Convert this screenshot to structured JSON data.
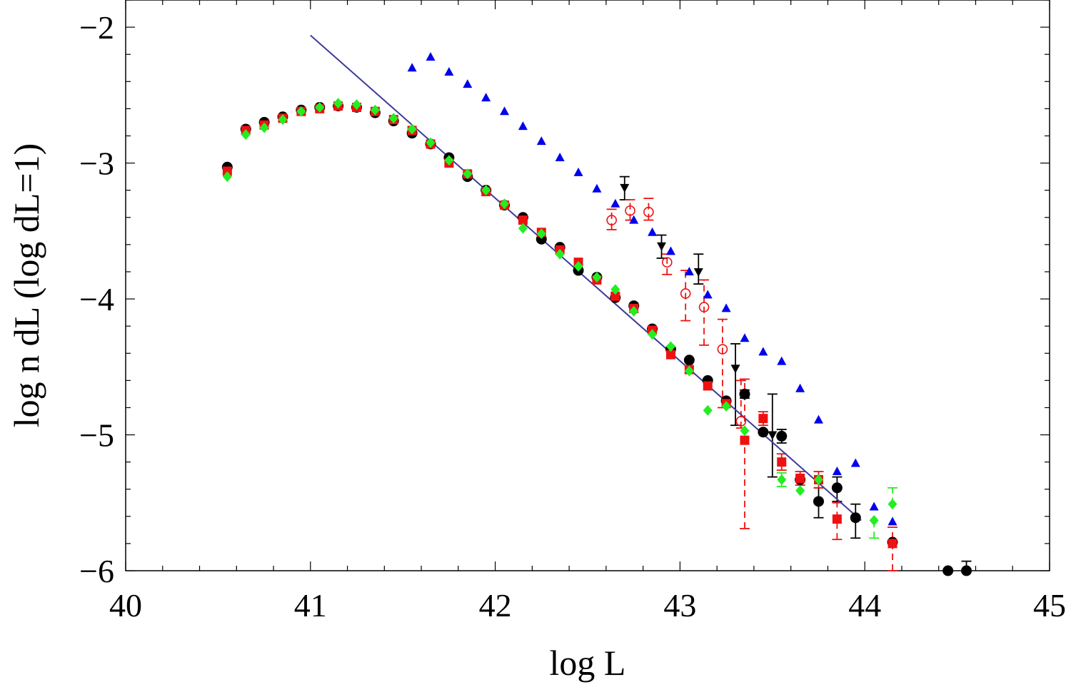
{
  "chart_data": {
    "type": "scatter",
    "title": "",
    "xlabel": "log L",
    "ylabel": "log n dL (log dL=1)",
    "xlim": [
      40,
      45
    ],
    "ylim": [
      -6,
      -1.8
    ],
    "xticks": [
      40,
      41,
      42,
      43,
      44,
      45
    ],
    "xtick_labels": [
      "40",
      "41",
      "42",
      "43",
      "44",
      "45"
    ],
    "yticks": [
      -2,
      -3,
      -4,
      -5,
      -6
    ],
    "ytick_labels": [
      "−2",
      "−3",
      "−4",
      "−5",
      "−6"
    ],
    "grid": false,
    "legend": "none",
    "colors": {
      "black": "#000000",
      "red": "#ee1111",
      "green": "#22ee22",
      "blue": "#0000ee",
      "fit": "#3b3b9b"
    },
    "series": [
      {
        "name": "black-circles",
        "marker": "circle",
        "color": "#000000",
        "points": [
          {
            "x": 40.55,
            "y": -3.03
          },
          {
            "x": 40.65,
            "y": -2.75
          },
          {
            "x": 40.75,
            "y": -2.7
          },
          {
            "x": 40.85,
            "y": -2.66
          },
          {
            "x": 40.95,
            "y": -2.61
          },
          {
            "x": 41.05,
            "y": -2.59
          },
          {
            "x": 41.15,
            "y": -2.58
          },
          {
            "x": 41.25,
            "y": -2.59
          },
          {
            "x": 41.35,
            "y": -2.63
          },
          {
            "x": 41.45,
            "y": -2.69
          },
          {
            "x": 41.55,
            "y": -2.78
          },
          {
            "x": 41.65,
            "y": -2.86
          },
          {
            "x": 41.75,
            "y": -2.96
          },
          {
            "x": 41.85,
            "y": -3.1
          },
          {
            "x": 41.95,
            "y": -3.2
          },
          {
            "x": 42.05,
            "y": -3.31
          },
          {
            "x": 42.15,
            "y": -3.4
          },
          {
            "x": 42.25,
            "y": -3.56
          },
          {
            "x": 42.35,
            "y": -3.62
          },
          {
            "x": 42.45,
            "y": -3.79
          },
          {
            "x": 42.55,
            "y": -3.84
          },
          {
            "x": 42.65,
            "y": -3.99
          },
          {
            "x": 42.75,
            "y": -4.05
          },
          {
            "x": 42.85,
            "y": -4.22
          },
          {
            "x": 42.95,
            "y": -4.37
          },
          {
            "x": 43.05,
            "y": -4.45
          },
          {
            "x": 43.15,
            "y": -4.6
          },
          {
            "x": 43.25,
            "y": -4.75
          },
          {
            "x": 43.35,
            "y": -4.7,
            "err": [
              0.03,
              0.03
            ]
          },
          {
            "x": 43.45,
            "y": -4.98
          },
          {
            "x": 43.55,
            "y": -5.01,
            "err": [
              0.05,
              0.05
            ]
          },
          {
            "x": 43.65,
            "y": -5.33
          },
          {
            "x": 43.75,
            "y": -5.49,
            "err": [
              0.12,
              0.1
            ]
          },
          {
            "x": 43.85,
            "y": -5.39,
            "err": [
              0.1,
              0.08
            ]
          },
          {
            "x": 43.95,
            "y": -5.61,
            "err": [
              0.15,
              0.1
            ]
          },
          {
            "x": 44.15,
            "y": -5.79
          },
          {
            "x": 44.45,
            "y": -6.0
          },
          {
            "x": 44.55,
            "y": -6.0,
            "err": [
              0.0,
              0.07
            ]
          }
        ]
      },
      {
        "name": "red-squares",
        "marker": "square",
        "color": "#ee1111",
        "dashed_errors": true,
        "points": [
          {
            "x": 40.55,
            "y": -3.06
          },
          {
            "x": 40.65,
            "y": -2.76
          },
          {
            "x": 40.75,
            "y": -2.72
          },
          {
            "x": 40.85,
            "y": -2.67
          },
          {
            "x": 40.95,
            "y": -2.62
          },
          {
            "x": 41.05,
            "y": -2.6
          },
          {
            "x": 41.15,
            "y": -2.58
          },
          {
            "x": 41.25,
            "y": -2.59
          },
          {
            "x": 41.35,
            "y": -2.62
          },
          {
            "x": 41.45,
            "y": -2.68
          },
          {
            "x": 41.55,
            "y": -2.76
          },
          {
            "x": 41.65,
            "y": -2.86
          },
          {
            "x": 41.75,
            "y": -3.0
          },
          {
            "x": 41.85,
            "y": -3.08
          },
          {
            "x": 41.95,
            "y": -3.21
          },
          {
            "x": 42.05,
            "y": -3.31
          },
          {
            "x": 42.15,
            "y": -3.42
          },
          {
            "x": 42.25,
            "y": -3.51
          },
          {
            "x": 42.35,
            "y": -3.64
          },
          {
            "x": 42.45,
            "y": -3.73
          },
          {
            "x": 42.55,
            "y": -3.86
          },
          {
            "x": 42.65,
            "y": -3.98
          },
          {
            "x": 42.75,
            "y": -4.07
          },
          {
            "x": 42.85,
            "y": -4.23
          },
          {
            "x": 42.95,
            "y": -4.41
          },
          {
            "x": 43.05,
            "y": -4.52
          },
          {
            "x": 43.15,
            "y": -4.64
          },
          {
            "x": 43.25,
            "y": -4.77
          },
          {
            "x": 43.35,
            "y": -5.04,
            "err": [
              0.65,
              0.45
            ]
          },
          {
            "x": 43.45,
            "y": -4.88,
            "err": [
              0.05,
              0.05
            ]
          },
          {
            "x": 43.55,
            "y": -5.2,
            "err": [
              0.06,
              0.06
            ]
          },
          {
            "x": 43.65,
            "y": -5.32,
            "err": [
              0.05,
              0.05
            ]
          },
          {
            "x": 43.75,
            "y": -5.33,
            "err": [
              0.06,
              0.06
            ]
          },
          {
            "x": 43.85,
            "y": -5.62,
            "err": [
              0.15,
              0.12
            ]
          },
          {
            "x": 44.15,
            "y": -5.8,
            "err": [
              0.2,
              0.12
            ]
          }
        ]
      },
      {
        "name": "green-diamonds",
        "marker": "diamond",
        "color": "#22ee22",
        "dashed_errors": true,
        "points": [
          {
            "x": 40.55,
            "y": -3.1
          },
          {
            "x": 40.65,
            "y": -2.79
          },
          {
            "x": 40.75,
            "y": -2.74
          },
          {
            "x": 40.85,
            "y": -2.68
          },
          {
            "x": 40.95,
            "y": -2.62
          },
          {
            "x": 41.05,
            "y": -2.59
          },
          {
            "x": 41.15,
            "y": -2.56
          },
          {
            "x": 41.25,
            "y": -2.57
          },
          {
            "x": 41.35,
            "y": -2.61
          },
          {
            "x": 41.45,
            "y": -2.67
          },
          {
            "x": 41.55,
            "y": -2.75
          },
          {
            "x": 41.65,
            "y": -2.85
          },
          {
            "x": 41.75,
            "y": -2.98
          },
          {
            "x": 41.85,
            "y": -3.08
          },
          {
            "x": 41.95,
            "y": -3.2
          },
          {
            "x": 42.05,
            "y": -3.3
          },
          {
            "x": 42.15,
            "y": -3.48
          },
          {
            "x": 42.25,
            "y": -3.52
          },
          {
            "x": 42.35,
            "y": -3.67
          },
          {
            "x": 42.45,
            "y": -3.76
          },
          {
            "x": 42.55,
            "y": -3.84
          },
          {
            "x": 42.65,
            "y": -3.93
          },
          {
            "x": 42.75,
            "y": -4.09
          },
          {
            "x": 42.85,
            "y": -4.26
          },
          {
            "x": 42.95,
            "y": -4.35
          },
          {
            "x": 43.05,
            "y": -4.53
          },
          {
            "x": 43.15,
            "y": -4.82
          },
          {
            "x": 43.25,
            "y": -4.79
          },
          {
            "x": 43.35,
            "y": -4.97
          },
          {
            "x": 43.55,
            "y": -5.33,
            "err": [
              0.05,
              0.05
            ]
          },
          {
            "x": 43.65,
            "y": -5.41
          },
          {
            "x": 43.75,
            "y": -5.33
          },
          {
            "x": 44.05,
            "y": -5.63,
            "err": [
              0.13,
              0.0
            ]
          },
          {
            "x": 44.15,
            "y": -5.51,
            "err": [
              0.0,
              0.12
            ]
          }
        ]
      },
      {
        "name": "blue-triangles",
        "marker": "triangle-up",
        "color": "#0000ee",
        "points": [
          {
            "x": 41.55,
            "y": -2.3
          },
          {
            "x": 41.65,
            "y": -2.22
          },
          {
            "x": 41.75,
            "y": -2.33
          },
          {
            "x": 41.85,
            "y": -2.42
          },
          {
            "x": 41.95,
            "y": -2.52
          },
          {
            "x": 42.05,
            "y": -2.62
          },
          {
            "x": 42.15,
            "y": -2.73
          },
          {
            "x": 42.25,
            "y": -2.84
          },
          {
            "x": 42.35,
            "y": -2.96
          },
          {
            "x": 42.45,
            "y": -3.07
          },
          {
            "x": 42.55,
            "y": -3.19
          },
          {
            "x": 42.65,
            "y": -3.3
          },
          {
            "x": 42.75,
            "y": -3.42
          },
          {
            "x": 42.85,
            "y": -3.51
          },
          {
            "x": 42.95,
            "y": -3.65
          },
          {
            "x": 43.05,
            "y": -3.8
          },
          {
            "x": 43.15,
            "y": -3.97
          },
          {
            "x": 43.25,
            "y": -4.07
          },
          {
            "x": 43.35,
            "y": -4.29
          },
          {
            "x": 43.45,
            "y": -4.39
          },
          {
            "x": 43.55,
            "y": -4.46
          },
          {
            "x": 43.65,
            "y": -4.66
          },
          {
            "x": 43.75,
            "y": -4.89
          },
          {
            "x": 43.85,
            "y": -5.27
          },
          {
            "x": 43.95,
            "y": -5.21
          },
          {
            "x": 44.05,
            "y": -5.53
          },
          {
            "x": 44.15,
            "y": -5.64
          }
        ]
      },
      {
        "name": "black-down-triangles",
        "marker": "triangle-down",
        "color": "#000000",
        "points": [
          {
            "x": 42.7,
            "y": -3.18,
            "err": [
              0.09,
              0.08
            ]
          },
          {
            "x": 42.9,
            "y": -3.61,
            "err": [
              0.09,
              0.08
            ]
          },
          {
            "x": 43.1,
            "y": -3.8,
            "err": [
              0.09,
              0.13
            ]
          },
          {
            "x": 43.3,
            "y": -4.51,
            "err": [
              0.42,
              0.18
            ]
          },
          {
            "x": 43.5,
            "y": -5.0,
            "err": [
              0.31,
              0.3
            ]
          }
        ]
      },
      {
        "name": "red-open-circles",
        "marker": "circle-open",
        "color": "#ee1111",
        "dashed_errors": true,
        "points": [
          {
            "x": 42.63,
            "y": -3.42,
            "err": [
              0.07,
              0.08
            ]
          },
          {
            "x": 42.73,
            "y": -3.35,
            "err": [
              0.07,
              0.08
            ]
          },
          {
            "x": 42.83,
            "y": -3.36,
            "err": [
              0.06,
              0.1
            ]
          },
          {
            "x": 42.93,
            "y": -3.73,
            "err": [
              0.09,
              0.06
            ]
          },
          {
            "x": 43.03,
            "y": -3.96,
            "err": [
              0.2,
              0.17
            ]
          },
          {
            "x": 43.13,
            "y": -4.06,
            "err": [
              0.28,
              0.2
            ]
          },
          {
            "x": 43.23,
            "y": -4.37,
            "err": [
              0.43,
              0.22
            ]
          },
          {
            "x": 43.33,
            "y": -4.9,
            "err": [
              0.05,
              0.3
            ]
          }
        ]
      }
    ],
    "fit_line": {
      "color": "#3b3b9b",
      "x": [
        41.0,
        43.98
      ],
      "y": [
        -2.06,
        -5.63
      ]
    }
  }
}
